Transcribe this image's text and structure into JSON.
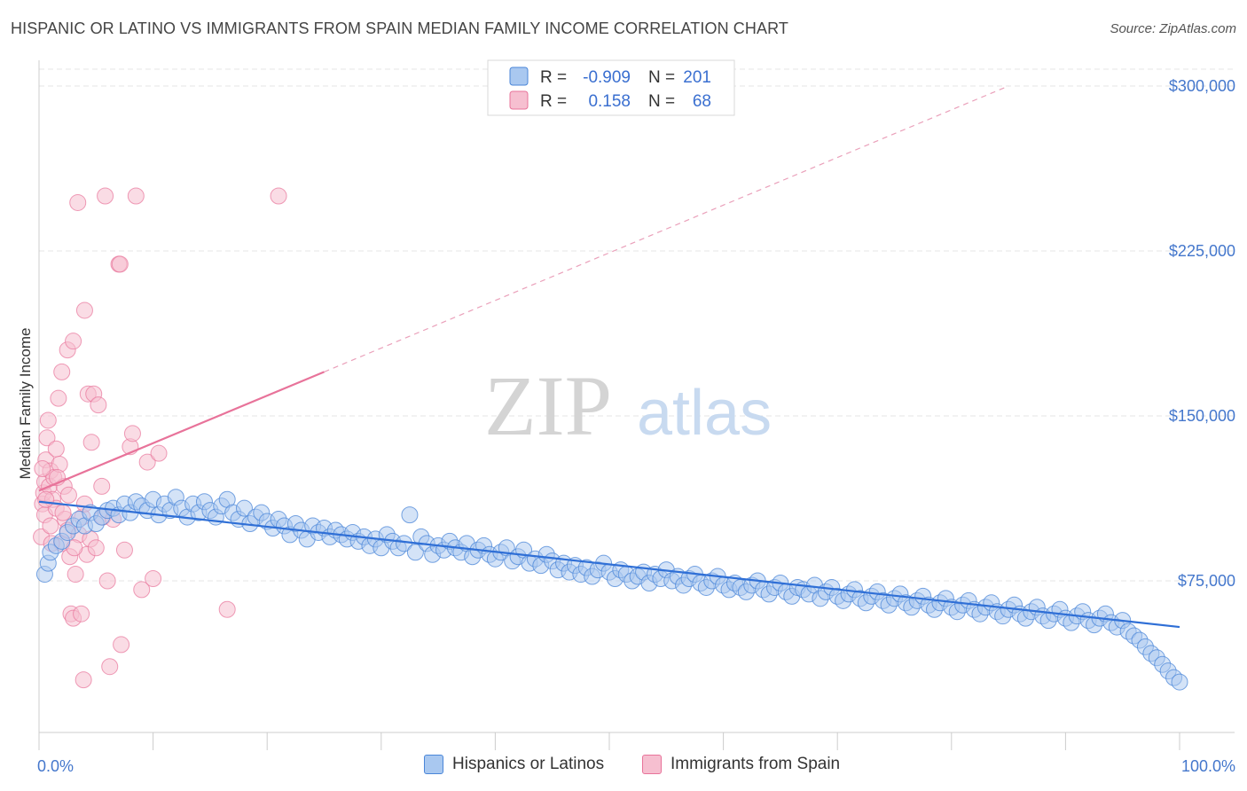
{
  "title": "HISPANIC OR LATINO VS IMMIGRANTS FROM SPAIN MEDIAN FAMILY INCOME CORRELATION CHART",
  "source": "Source: ZipAtlas.com",
  "watermark": {
    "zip": "ZIP",
    "atlas": "atlas"
  },
  "colors": {
    "blue": "#4a86d8",
    "blue_fill": "#a9c8f0",
    "pink": "#e8739a",
    "pink_fill": "#f6bfd0",
    "axis_text": "#4477cc",
    "grid": "#e6e6e6"
  },
  "stats_legend": {
    "rows": [
      {
        "r_label": "R =",
        "r_value": "-0.909",
        "n_label": "N =",
        "n_value": "201"
      },
      {
        "r_label": "R =",
        "r_value": "0.158",
        "n_label": "N =",
        "n_value": "68"
      }
    ]
  },
  "bottom_legend": [
    "Hispanics or Latinos",
    "Immigrants from Spain"
  ],
  "chart_data": {
    "type": "scatter",
    "title": "HISPANIC OR LATINO VS IMMIGRANTS FROM SPAIN MEDIAN FAMILY INCOME CORRELATION CHART",
    "xlabel": "",
    "ylabel": "Median Family Income",
    "xlim": [
      0,
      100
    ],
    "ylim": [
      20000,
      310000
    ],
    "x_tick_labels": [
      "0.0%",
      "100.0%"
    ],
    "y_ticks": [
      75000,
      150000,
      225000,
      300000
    ],
    "y_tick_labels": [
      "$75,000",
      "$150,000",
      "$225,000",
      "$300,000"
    ],
    "grid": true,
    "series": [
      {
        "name": "Hispanics or Latinos",
        "trend": {
          "x": [
            0,
            100
          ],
          "y": [
            111000,
            54000
          ]
        },
        "points": [
          [
            0.5,
            78000
          ],
          [
            0.8,
            83000
          ],
          [
            1,
            88000
          ],
          [
            1.5,
            91000
          ],
          [
            2,
            93000
          ],
          [
            2.5,
            97000
          ],
          [
            3,
            100000
          ],
          [
            3.5,
            103000
          ],
          [
            4,
            100000
          ],
          [
            4.5,
            106000
          ],
          [
            5,
            101000
          ],
          [
            5.5,
            104000
          ],
          [
            6,
            107000
          ],
          [
            6.5,
            108000
          ],
          [
            7,
            105000
          ],
          [
            7.5,
            110000
          ],
          [
            8,
            106000
          ],
          [
            8.5,
            111000
          ],
          [
            9,
            109000
          ],
          [
            9.5,
            107000
          ],
          [
            10,
            112000
          ],
          [
            10.5,
            105000
          ],
          [
            11,
            110000
          ],
          [
            11.5,
            107000
          ],
          [
            12,
            113000
          ],
          [
            12.5,
            108000
          ],
          [
            13,
            104000
          ],
          [
            13.5,
            110000
          ],
          [
            14,
            106000
          ],
          [
            14.5,
            111000
          ],
          [
            15,
            107000
          ],
          [
            15.5,
            104000
          ],
          [
            16,
            109000
          ],
          [
            16.5,
            112000
          ],
          [
            17,
            106000
          ],
          [
            17.5,
            103000
          ],
          [
            18,
            108000
          ],
          [
            18.5,
            101000
          ],
          [
            19,
            104000
          ],
          [
            19.5,
            106000
          ],
          [
            20,
            102000
          ],
          [
            20.5,
            99000
          ],
          [
            21,
            103000
          ],
          [
            21.5,
            100000
          ],
          [
            22,
            96000
          ],
          [
            22.5,
            101000
          ],
          [
            23,
            98000
          ],
          [
            23.5,
            94000
          ],
          [
            24,
            100000
          ],
          [
            24.5,
            97000
          ],
          [
            25,
            99000
          ],
          [
            25.5,
            95000
          ],
          [
            26,
            98000
          ],
          [
            26.5,
            96000
          ],
          [
            27,
            94000
          ],
          [
            27.5,
            97000
          ],
          [
            28,
            93000
          ],
          [
            28.5,
            95000
          ],
          [
            29,
            91000
          ],
          [
            29.5,
            94000
          ],
          [
            30,
            90000
          ],
          [
            30.5,
            96000
          ],
          [
            31,
            93000
          ],
          [
            31.5,
            90000
          ],
          [
            32,
            92000
          ],
          [
            32.5,
            105000
          ],
          [
            33,
            88000
          ],
          [
            33.5,
            95000
          ],
          [
            34,
            92000
          ],
          [
            34.5,
            87000
          ],
          [
            35,
            91000
          ],
          [
            35.5,
            89000
          ],
          [
            36,
            93000
          ],
          [
            36.5,
            90000
          ],
          [
            37,
            88000
          ],
          [
            37.5,
            92000
          ],
          [
            38,
            86000
          ],
          [
            38.5,
            89000
          ],
          [
            39,
            91000
          ],
          [
            39.5,
            87000
          ],
          [
            40,
            85000
          ],
          [
            40.5,
            88000
          ],
          [
            41,
            90000
          ],
          [
            41.5,
            84000
          ],
          [
            42,
            86000
          ],
          [
            42.5,
            89000
          ],
          [
            43,
            83000
          ],
          [
            43.5,
            85000
          ],
          [
            44,
            82000
          ],
          [
            44.5,
            87000
          ],
          [
            45,
            84000
          ],
          [
            45.5,
            80000
          ],
          [
            46,
            83000
          ],
          [
            46.5,
            79000
          ],
          [
            47,
            82000
          ],
          [
            47.5,
            78000
          ],
          [
            48,
            81000
          ],
          [
            48.5,
            77000
          ],
          [
            49,
            80000
          ],
          [
            49.5,
            83000
          ],
          [
            50,
            79000
          ],
          [
            50.5,
            76000
          ],
          [
            51,
            80000
          ],
          [
            51.5,
            78000
          ],
          [
            52,
            75000
          ],
          [
            52.5,
            77000
          ],
          [
            53,
            79000
          ],
          [
            53.5,
            74000
          ],
          [
            54,
            78000
          ],
          [
            54.5,
            76000
          ],
          [
            55,
            80000
          ],
          [
            55.5,
            75000
          ],
          [
            56,
            77000
          ],
          [
            56.5,
            73000
          ],
          [
            57,
            76000
          ],
          [
            57.5,
            78000
          ],
          [
            58,
            74000
          ],
          [
            58.5,
            72000
          ],
          [
            59,
            75000
          ],
          [
            59.5,
            77000
          ],
          [
            60,
            73000
          ],
          [
            60.5,
            71000
          ],
          [
            61,
            74000
          ],
          [
            61.5,
            72000
          ],
          [
            62,
            70000
          ],
          [
            62.5,
            73000
          ],
          [
            63,
            75000
          ],
          [
            63.5,
            71000
          ],
          [
            64,
            69000
          ],
          [
            64.5,
            72000
          ],
          [
            65,
            74000
          ],
          [
            65.5,
            70000
          ],
          [
            66,
            68000
          ],
          [
            66.5,
            72000
          ],
          [
            67,
            71000
          ],
          [
            67.5,
            69000
          ],
          [
            68,
            73000
          ],
          [
            68.5,
            67000
          ],
          [
            69,
            70000
          ],
          [
            69.5,
            72000
          ],
          [
            70,
            68000
          ],
          [
            70.5,
            66000
          ],
          [
            71,
            69000
          ],
          [
            71.5,
            71000
          ],
          [
            72,
            67000
          ],
          [
            72.5,
            65000
          ],
          [
            73,
            68000
          ],
          [
            73.5,
            70000
          ],
          [
            74,
            66000
          ],
          [
            74.5,
            64000
          ],
          [
            75,
            67000
          ],
          [
            75.5,
            69000
          ],
          [
            76,
            65000
          ],
          [
            76.5,
            63000
          ],
          [
            77,
            66000
          ],
          [
            77.5,
            68000
          ],
          [
            78,
            64000
          ],
          [
            78.5,
            62000
          ],
          [
            79,
            65000
          ],
          [
            79.5,
            67000
          ],
          [
            80,
            63000
          ],
          [
            80.5,
            61000
          ],
          [
            81,
            64000
          ],
          [
            81.5,
            66000
          ],
          [
            82,
            62000
          ],
          [
            82.5,
            60000
          ],
          [
            83,
            63000
          ],
          [
            83.5,
            65000
          ],
          [
            84,
            61000
          ],
          [
            84.5,
            59000
          ],
          [
            85,
            62000
          ],
          [
            85.5,
            64000
          ],
          [
            86,
            60000
          ],
          [
            86.5,
            58000
          ],
          [
            87,
            61000
          ],
          [
            87.5,
            63000
          ],
          [
            88,
            59000
          ],
          [
            88.5,
            57000
          ],
          [
            89,
            60000
          ],
          [
            89.5,
            62000
          ],
          [
            90,
            58000
          ],
          [
            90.5,
            56000
          ],
          [
            91,
            59000
          ],
          [
            91.5,
            61000
          ],
          [
            92,
            57000
          ],
          [
            92.5,
            55000
          ],
          [
            93,
            58000
          ],
          [
            93.5,
            60000
          ],
          [
            94,
            56000
          ],
          [
            94.5,
            54000
          ],
          [
            95,
            57000
          ],
          [
            95.5,
            52000
          ],
          [
            96,
            50000
          ],
          [
            96.5,
            48000
          ],
          [
            97,
            45000
          ],
          [
            97.5,
            42000
          ],
          [
            98,
            40000
          ],
          [
            98.5,
            37000
          ],
          [
            99,
            34000
          ],
          [
            99.5,
            31000
          ],
          [
            100,
            29000
          ]
        ]
      },
      {
        "name": "Immigrants from Spain",
        "trend_solid": {
          "x": [
            0,
            25
          ],
          "y": [
            116000,
            170000
          ]
        },
        "trend_dashed": {
          "x": [
            25,
            85
          ],
          "y": [
            170000,
            300000
          ]
        },
        "points": [
          [
            0.2,
            95000
          ],
          [
            0.3,
            110000
          ],
          [
            0.4,
            115000
          ],
          [
            0.5,
            120000
          ],
          [
            0.5,
            105000
          ],
          [
            0.6,
            130000
          ],
          [
            0.7,
            140000
          ],
          [
            0.8,
            148000
          ],
          [
            0.9,
            118000
          ],
          [
            1,
            125000
          ],
          [
            1,
            100000
          ],
          [
            1.2,
            112000
          ],
          [
            1.3,
            122000
          ],
          [
            1.5,
            135000
          ],
          [
            1.5,
            108000
          ],
          [
            1.7,
            158000
          ],
          [
            1.8,
            128000
          ],
          [
            2,
            170000
          ],
          [
            2,
            92000
          ],
          [
            2.2,
            118000
          ],
          [
            2.3,
            103000
          ],
          [
            2.5,
            180000
          ],
          [
            2.5,
            98000
          ],
          [
            2.7,
            86000
          ],
          [
            2.8,
            60000
          ],
          [
            3,
            58000
          ],
          [
            3,
            184000
          ],
          [
            3.2,
            78000
          ],
          [
            3.4,
            247000
          ],
          [
            3.5,
            96000
          ],
          [
            3.7,
            60000
          ],
          [
            3.8,
            104000
          ],
          [
            4,
            198000
          ],
          [
            4,
            110000
          ],
          [
            4.2,
            87000
          ],
          [
            4.3,
            160000
          ],
          [
            4.5,
            94000
          ],
          [
            4.6,
            138000
          ],
          [
            4.8,
            160000
          ],
          [
            5,
            90000
          ],
          [
            5.2,
            155000
          ],
          [
            5.5,
            118000
          ],
          [
            5.6,
            104000
          ],
          [
            5.8,
            250000
          ],
          [
            6,
            75000
          ],
          [
            6.2,
            36000
          ],
          [
            6.5,
            103000
          ],
          [
            7,
            219000
          ],
          [
            7.1,
            219000
          ],
          [
            7.2,
            46000
          ],
          [
            7.5,
            89000
          ],
          [
            8,
            136000
          ],
          [
            8.5,
            250000
          ],
          [
            9,
            71000
          ],
          [
            9.5,
            129000
          ],
          [
            10,
            76000
          ],
          [
            10.5,
            133000
          ],
          [
            16.5,
            62000
          ],
          [
            21,
            250000
          ],
          [
            0.3,
            126000
          ],
          [
            0.6,
            112000
          ],
          [
            1.1,
            92000
          ],
          [
            1.6,
            122000
          ],
          [
            2.1,
            106000
          ],
          [
            2.6,
            114000
          ],
          [
            3.1,
            90000
          ],
          [
            3.9,
            30000
          ],
          [
            8.2,
            142000
          ]
        ]
      }
    ]
  }
}
